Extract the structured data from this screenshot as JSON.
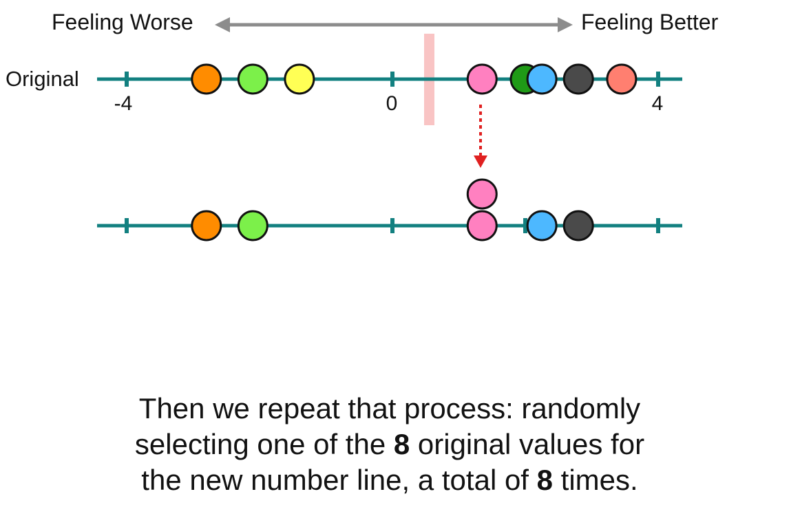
{
  "header": {
    "worse_label": "Feeling Worse",
    "better_label": "Feeling Better"
  },
  "number_line": {
    "row_label": "Original",
    "tick_labels": [
      "-4",
      "0",
      "4"
    ]
  },
  "original_points": [
    {
      "value": -2.8,
      "color": "#ff8c00"
    },
    {
      "value": -2.1,
      "color": "#7cf04a"
    },
    {
      "value": -1.4,
      "color": "#ffff55"
    },
    {
      "value": 1.35,
      "color": "#ff80c0"
    },
    {
      "value": 2.0,
      "color": "#1f9a16"
    },
    {
      "value": 2.25,
      "color": "#4db8ff"
    },
    {
      "value": 2.8,
      "color": "#4a4a4a"
    },
    {
      "value": 3.45,
      "color": "#ff7f70"
    }
  ],
  "resampled_points": [
    {
      "value": -2.8,
      "color": "#ff8c00",
      "stack": 0
    },
    {
      "value": -2.1,
      "color": "#7cf04a",
      "stack": 0
    },
    {
      "value": 1.35,
      "color": "#ff80c0",
      "stack": 0
    },
    {
      "value": 1.35,
      "color": "#ff80c0",
      "stack": 1
    },
    {
      "value": 2.25,
      "color": "#4db8ff",
      "stack": 0
    },
    {
      "value": 2.8,
      "color": "#4a4a4a",
      "stack": 0
    }
  ],
  "colors": {
    "axis": "#128080",
    "arrow": "#8c8c8c",
    "highlight_bar": "#f9c4c4",
    "dotted_arrow": "#e02020"
  },
  "caption": {
    "line1": "Then we repeat that process: randomly",
    "line2_a": "selecting one of the ",
    "line2_bold": "8",
    "line2_b": " original values for",
    "line3_a": "the new number line, a total of ",
    "line3_bold": "8",
    "line3_b": " times."
  }
}
